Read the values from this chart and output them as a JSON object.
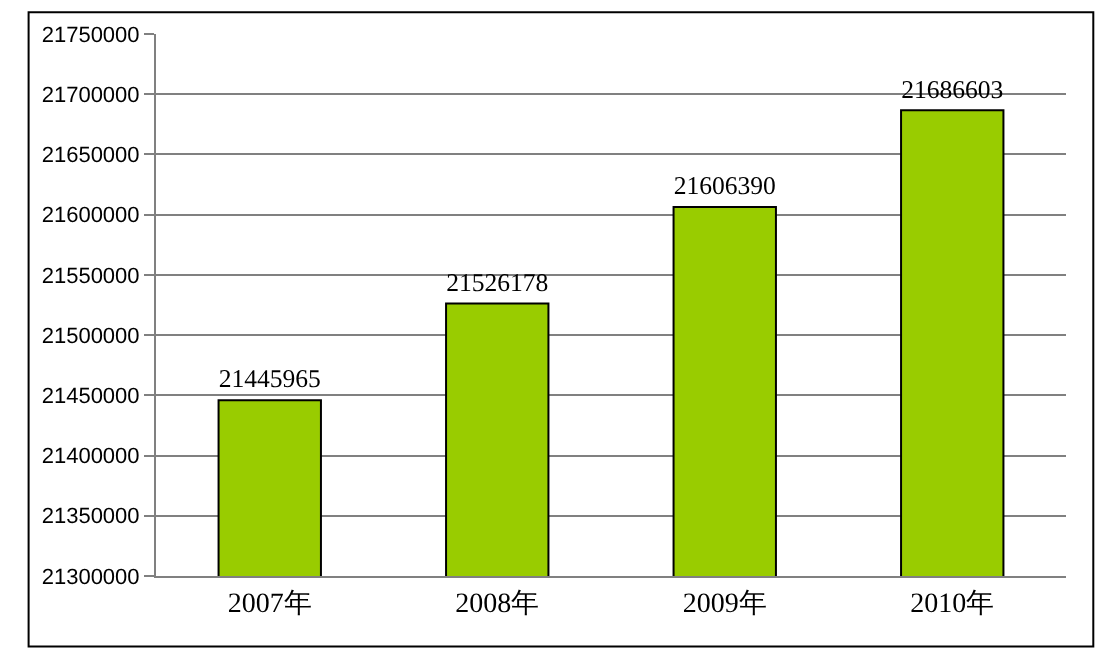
{
  "chart_data": {
    "type": "bar",
    "categories": [
      "2007年",
      "2008年",
      "2009年",
      "2010年"
    ],
    "values": [
      21445965,
      21526178,
      21606390,
      21686603
    ],
    "color": "#99cc00",
    "ylim": [
      21300000,
      21750000
    ],
    "yticks": [
      21300000,
      21350000,
      21400000,
      21450000,
      21500000,
      21550000,
      21600000,
      21650000,
      21700000,
      21750000
    ],
    "grid": "y",
    "data_labels": true
  }
}
